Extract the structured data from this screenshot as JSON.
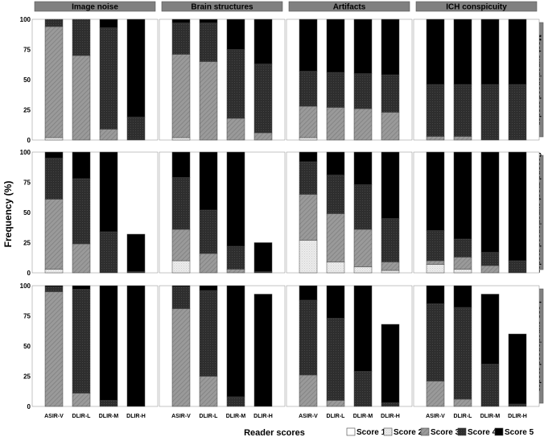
{
  "chart_data": {
    "type": "bar",
    "stacked": true,
    "ylabel": "Frequency (%)",
    "xlabel": "Reader scores",
    "ylim": [
      0,
      100
    ],
    "yticks": [
      0,
      25,
      50,
      75,
      100
    ],
    "categories": [
      "ASIR-V",
      "DLIR-L",
      "DLIR-M",
      "DLIR-H"
    ],
    "columns": [
      "Image noise",
      "Brain structures",
      "Artifacts",
      "ICH conspicuity"
    ],
    "rows": [
      "Most experienced reader",
      "Second most experienced reader",
      "Less experienced reader"
    ],
    "legend_title": "Reader scores",
    "legend_position": "bottom-right",
    "series_names": [
      "Score 1",
      "Score 2",
      "Score 3",
      "Score 4",
      "Score 5"
    ],
    "series_colors": [
      "#ffffff",
      "#e6e6e6",
      "#999999",
      "#333333",
      "#000000"
    ],
    "panels": [
      [
        [
          [
            0,
            2,
            92,
            6,
            0
          ],
          [
            0,
            0,
            70,
            30,
            0
          ],
          [
            0,
            0,
            9,
            84,
            7
          ],
          [
            0,
            0,
            0,
            19,
            81
          ]
        ],
        [
          [
            0,
            2,
            69,
            26,
            3
          ],
          [
            0,
            0,
            65,
            32,
            3
          ],
          [
            0,
            0,
            18,
            57,
            25
          ],
          [
            0,
            0,
            6,
            57,
            37
          ]
        ],
        [
          [
            0,
            2,
            26,
            29,
            43
          ],
          [
            0,
            0,
            27,
            29,
            44
          ],
          [
            0,
            0,
            26,
            29,
            45
          ],
          [
            0,
            0,
            23,
            31,
            46
          ]
        ],
        [
          [
            0,
            0,
            3,
            43,
            54
          ],
          [
            0,
            0,
            3,
            43,
            54
          ],
          [
            0,
            0,
            0,
            46,
            54
          ],
          [
            0,
            0,
            0,
            46,
            54
          ]
        ]
      ],
      [
        [
          [
            0,
            3,
            58,
            34,
            5
          ],
          [
            0,
            0,
            24,
            54,
            22
          ],
          [
            0,
            0,
            0,
            34,
            66
          ],
          [
            0,
            0,
            0,
            1,
            31
          ]
        ],
        [
          [
            0,
            10,
            26,
            43,
            21
          ],
          [
            0,
            0,
            16,
            36,
            48
          ],
          [
            0,
            0,
            3,
            19,
            78
          ],
          [
            0,
            0,
            0,
            1,
            24
          ]
        ],
        [
          [
            0,
            27,
            38,
            27,
            8
          ],
          [
            0,
            9,
            40,
            32,
            19
          ],
          [
            0,
            5,
            31,
            37,
            27
          ],
          [
            0,
            2,
            7,
            36,
            55
          ]
        ],
        [
          [
            0,
            7,
            3,
            25,
            65
          ],
          [
            0,
            3,
            10,
            15,
            72
          ],
          [
            0,
            0,
            6,
            11,
            83
          ],
          [
            0,
            0,
            0,
            10,
            90
          ]
        ]
      ],
      [
        [
          [
            0,
            0,
            95,
            4,
            1
          ],
          [
            0,
            0,
            11,
            86,
            3
          ],
          [
            0,
            0,
            0,
            5,
            95
          ],
          [
            0,
            0,
            0,
            0,
            100
          ]
        ],
        [
          [
            0,
            0,
            81,
            18,
            1
          ],
          [
            0,
            0,
            25,
            71,
            4
          ],
          [
            0,
            0,
            0,
            8,
            92
          ],
          [
            0,
            0,
            0,
            0,
            93
          ]
        ],
        [
          [
            0,
            0,
            26,
            62,
            12
          ],
          [
            0,
            0,
            5,
            68,
            27
          ],
          [
            0,
            0,
            0,
            29,
            71
          ],
          [
            0,
            0,
            0,
            3,
            65
          ]
        ],
        [
          [
            0,
            0,
            21,
            64,
            15
          ],
          [
            0,
            0,
            6,
            76,
            18
          ],
          [
            0,
            0,
            0,
            35,
            58
          ],
          [
            0,
            0,
            0,
            2,
            58
          ]
        ]
      ]
    ]
  }
}
